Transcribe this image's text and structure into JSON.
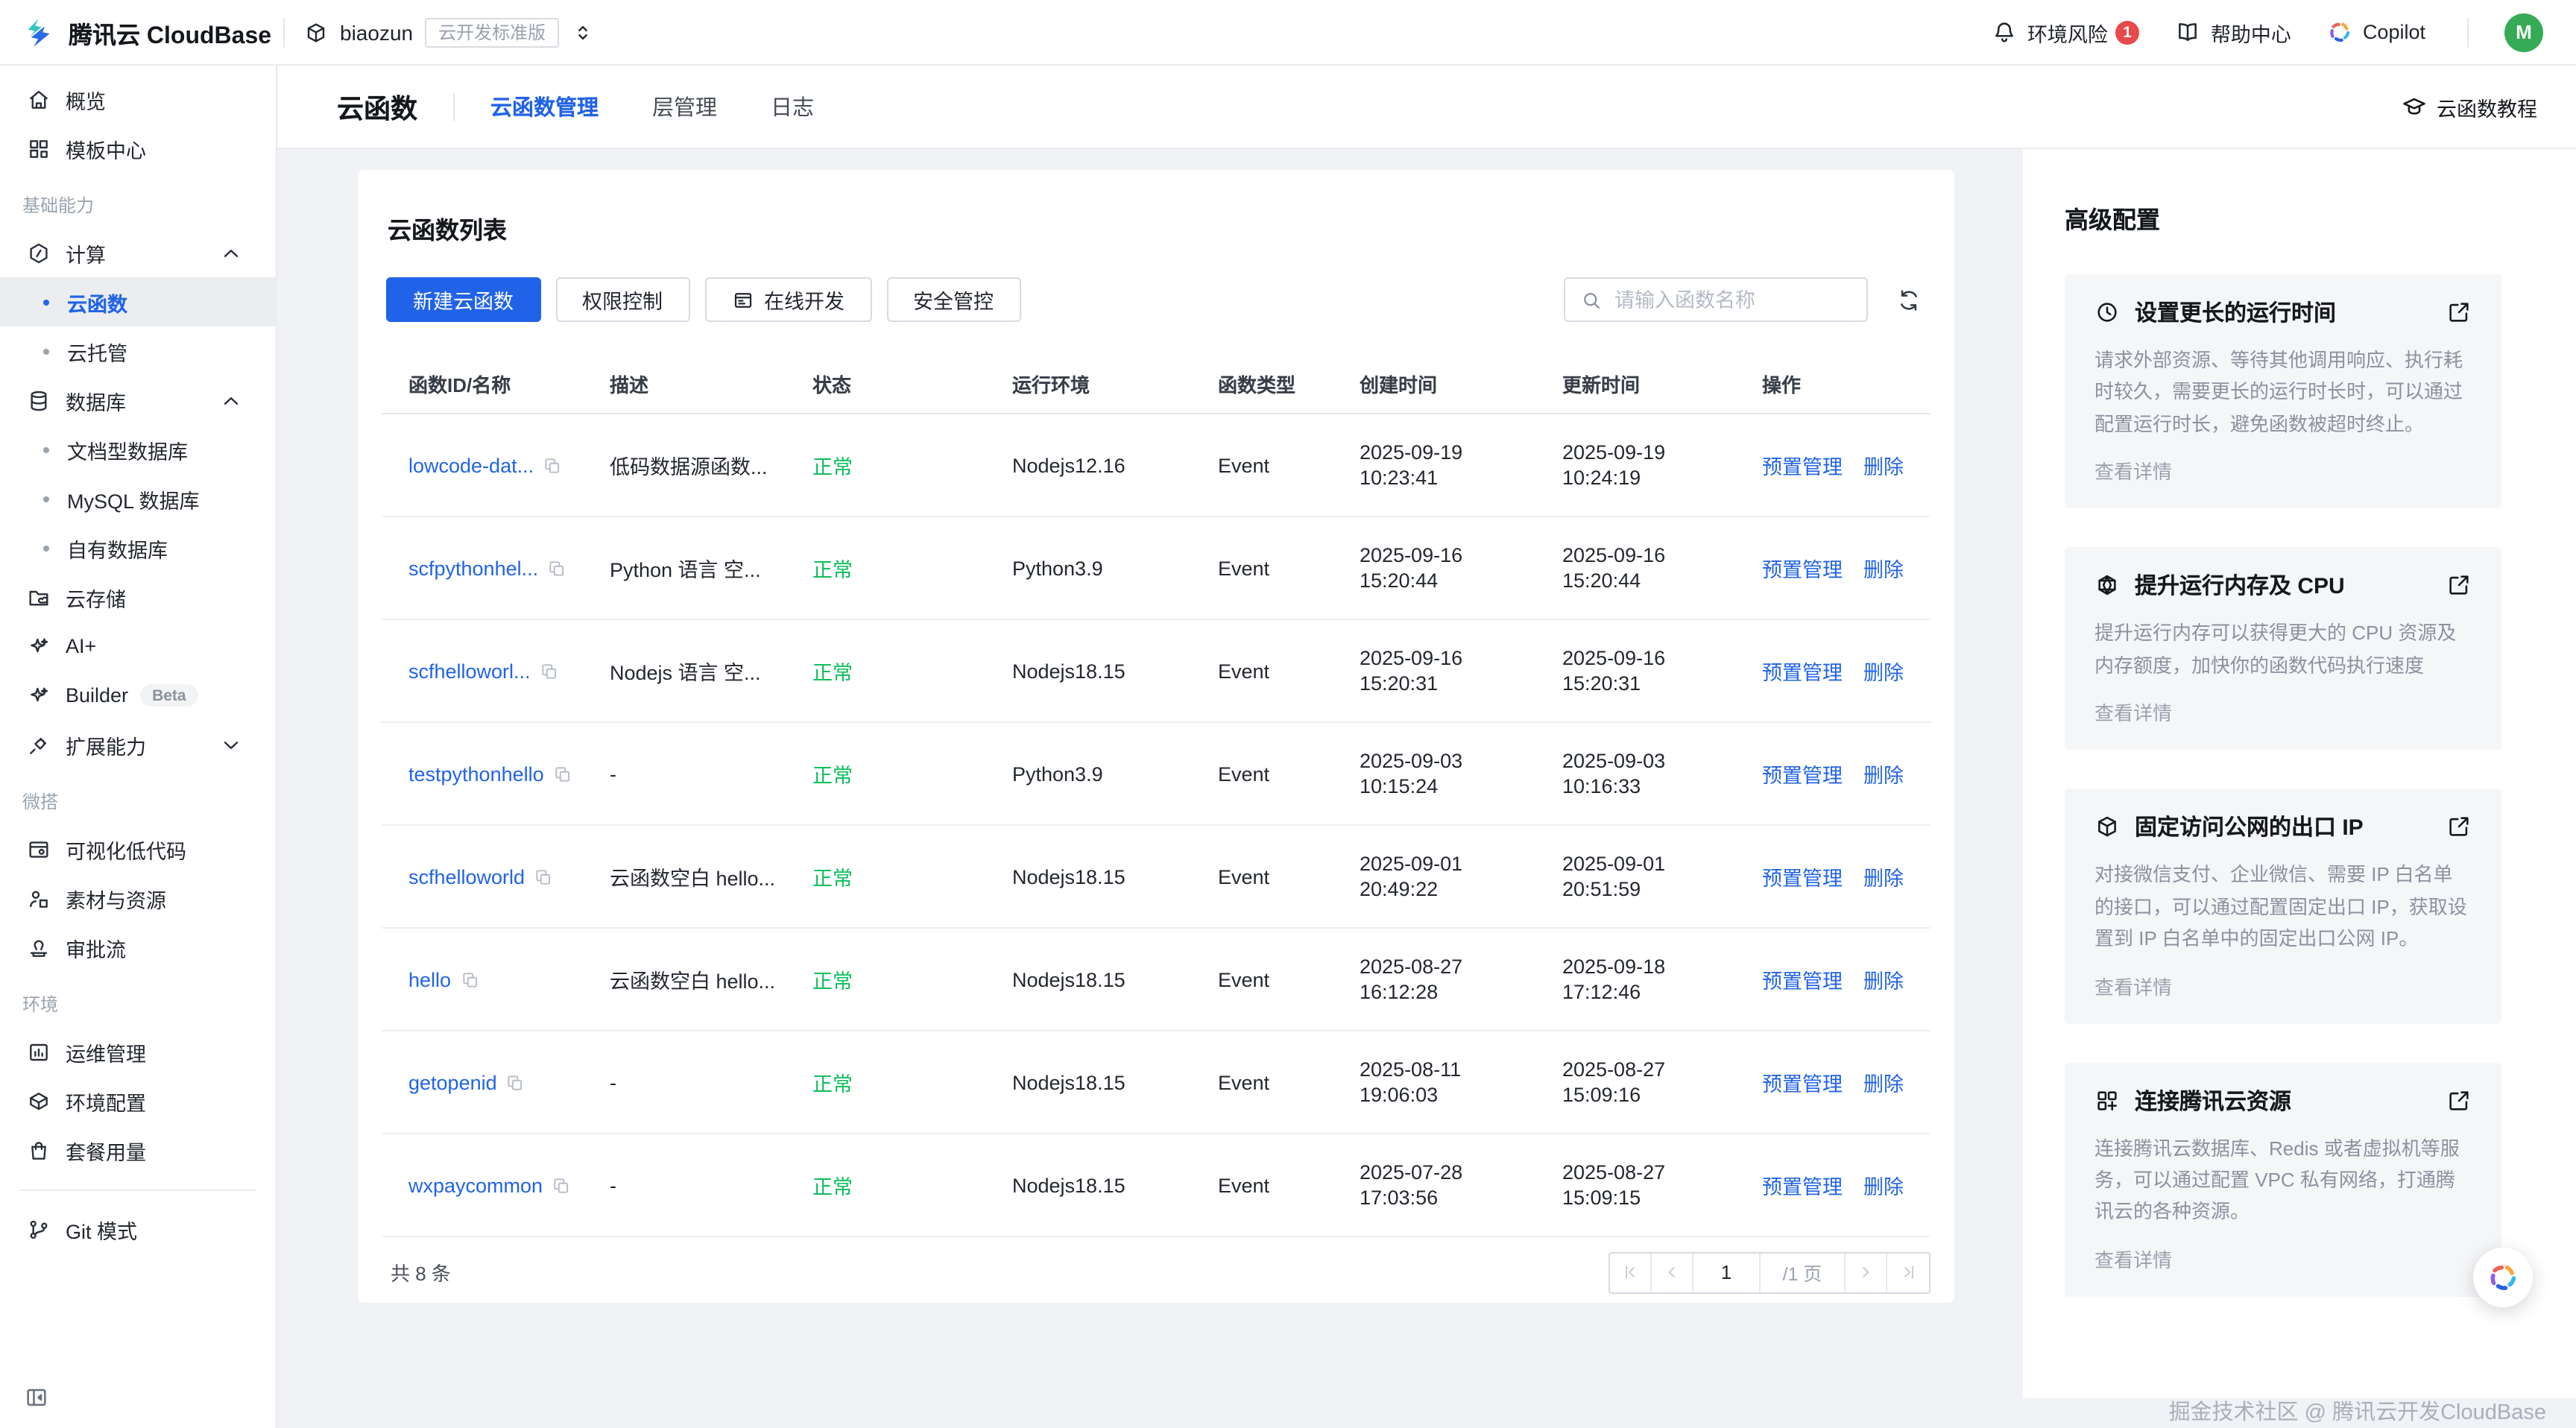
{
  "colors": {
    "primary": "#2163e8",
    "success": "#0abf5b",
    "danger": "#e84949",
    "avatar_green": "#35ab55"
  },
  "header": {
    "brand": "腾讯云 CloudBase",
    "env_name": "biaozun",
    "env_badge": "云开发标准版",
    "risk_label": "环境风险",
    "risk_count": "1",
    "help_label": "帮助中心",
    "copilot_label": "Copilot",
    "avatar_text": "M"
  },
  "tabbar": {
    "title": "云函数",
    "tabs": [
      {
        "label": "云函数管理",
        "active": true
      },
      {
        "label": "层管理"
      },
      {
        "label": "日志"
      }
    ],
    "tutorial": "云函数教程"
  },
  "sidebar": {
    "items": [
      {
        "icon": "home-icon",
        "label": "概览"
      },
      {
        "icon": "template-icon",
        "label": "模板中心"
      },
      {
        "section": "基础能力"
      },
      {
        "icon": "compute-icon",
        "label": "计算",
        "chevron_up": true
      },
      {
        "sub": true,
        "label": "云函数",
        "active": true
      },
      {
        "sub": true,
        "label": "云托管"
      },
      {
        "icon": "database-icon",
        "label": "数据库",
        "chevron_up": true
      },
      {
        "sub": true,
        "label": "文档型数据库"
      },
      {
        "sub": true,
        "label": "MySQL 数据库"
      },
      {
        "sub": true,
        "label": "自有数据库"
      },
      {
        "icon": "storage-icon",
        "label": "云存储"
      },
      {
        "icon": "sparkle-icon",
        "label": "AI+"
      },
      {
        "icon": "sparkle-icon",
        "label": "Builder",
        "badge": "Beta"
      },
      {
        "icon": "plugin-icon",
        "label": "扩展能力",
        "chevron_down": true
      },
      {
        "section": "微搭"
      },
      {
        "icon": "lowcode-icon",
        "label": "可视化低代码"
      },
      {
        "icon": "assets-icon",
        "label": "素材与资源"
      },
      {
        "icon": "approval-icon",
        "label": "审批流"
      },
      {
        "section": "环境"
      },
      {
        "icon": "ops-icon",
        "label": "运维管理"
      },
      {
        "icon": "envconfig-icon",
        "label": "环境配置"
      },
      {
        "icon": "usage-icon",
        "label": "套餐用量"
      },
      {
        "divider": true
      },
      {
        "icon": "git-branch-icon",
        "label": "Git 模式"
      }
    ]
  },
  "main": {
    "title": "云函数列表",
    "create_btn": "新建云函数",
    "perm_btn": "权限控制",
    "online_btn": "在线开发",
    "security_btn": "安全管控",
    "search_placeholder": "请输入函数名称",
    "table": {
      "columns": [
        "函数ID/名称",
        "描述",
        "状态",
        "运行环境",
        "函数类型",
        "创建时间",
        "更新时间",
        "操作"
      ],
      "actions": [
        "预置管理",
        "删除"
      ],
      "rows": [
        {
          "name": "lowcode-dat...",
          "desc": "低码数据源函数...",
          "status": "正常",
          "runtime": "Nodejs12.16",
          "type": "Event",
          "created_d": "2025-09-19",
          "created_t": "10:23:41",
          "updated_d": "2025-09-19",
          "updated_t": "10:24:19"
        },
        {
          "name": "scfpythonhel...",
          "desc": "Python 语言 空...",
          "status": "正常",
          "runtime": "Python3.9",
          "type": "Event",
          "created_d": "2025-09-16",
          "created_t": "15:20:44",
          "updated_d": "2025-09-16",
          "updated_t": "15:20:44"
        },
        {
          "name": "scfhelloworl...",
          "desc": "Nodejs 语言 空...",
          "status": "正常",
          "runtime": "Nodejs18.15",
          "type": "Event",
          "created_d": "2025-09-16",
          "created_t": "15:20:31",
          "updated_d": "2025-09-16",
          "updated_t": "15:20:31"
        },
        {
          "name": "testpythonhello",
          "desc": "-",
          "status": "正常",
          "runtime": "Python3.9",
          "type": "Event",
          "created_d": "2025-09-03",
          "created_t": "10:15:24",
          "updated_d": "2025-09-03",
          "updated_t": "10:16:33"
        },
        {
          "name": "scfhelloworld",
          "desc": "云函数空白 hello...",
          "status": "正常",
          "runtime": "Nodejs18.15",
          "type": "Event",
          "created_d": "2025-09-01",
          "created_t": "20:49:22",
          "updated_d": "2025-09-01",
          "updated_t": "20:51:59"
        },
        {
          "name": "hello",
          "desc": "云函数空白 hello...",
          "status": "正常",
          "runtime": "Nodejs18.15",
          "type": "Event",
          "created_d": "2025-08-27",
          "created_t": "16:12:28",
          "updated_d": "2025-09-18",
          "updated_t": "17:12:46"
        },
        {
          "name": "getopenid",
          "desc": "-",
          "status": "正常",
          "runtime": "Nodejs18.15",
          "type": "Event",
          "created_d": "2025-08-11",
          "created_t": "19:06:03",
          "updated_d": "2025-08-27",
          "updated_t": "15:09:16"
        },
        {
          "name": "wxpaycommon",
          "desc": "-",
          "status": "正常",
          "runtime": "Nodejs18.15",
          "type": "Event",
          "created_d": "2025-07-28",
          "created_t": "17:03:56",
          "updated_d": "2025-08-27",
          "updated_t": "15:09:15"
        }
      ]
    },
    "pagination": {
      "total": "共 8 条",
      "page": "1",
      "page_suffix": "/1 页"
    }
  },
  "aside": {
    "title": "高级配置",
    "cards": [
      {
        "icon": "clock-icon",
        "title": "设置更长的运行时间",
        "body": "请求外部资源、等待其他调用响应、执行耗时较久，需要更长的运行时长时，可以通过配置运行时长，避免函数被超时终止。",
        "link": "查看详情"
      },
      {
        "icon": "cpu-icon",
        "title": "提升运行内存及 CPU",
        "body": "提升运行内存可以获得更大的 CPU 资源及内存额度，加快你的函数代码执行速度",
        "link": "查看详情"
      },
      {
        "icon": "cube-icon",
        "title": "固定访问公网的出口 IP",
        "body": "对接微信支付、企业微信、需要 IP 白名单的接口，可以通过配置固定出口 IP，获取设置到 IP 白名单中的固定出口公网 IP。",
        "link": "查看详情"
      },
      {
        "icon": "grid-icon",
        "title": "连接腾讯云资源",
        "body": "连接腾讯云数据库、Redis 或者虚拟机等服务，可以通过配置 VPC 私有网络，打通腾讯云的各种资源。",
        "link": "查看详情"
      }
    ]
  },
  "watermark": "掘金技术社区 @ 腾讯云开发CloudBase"
}
